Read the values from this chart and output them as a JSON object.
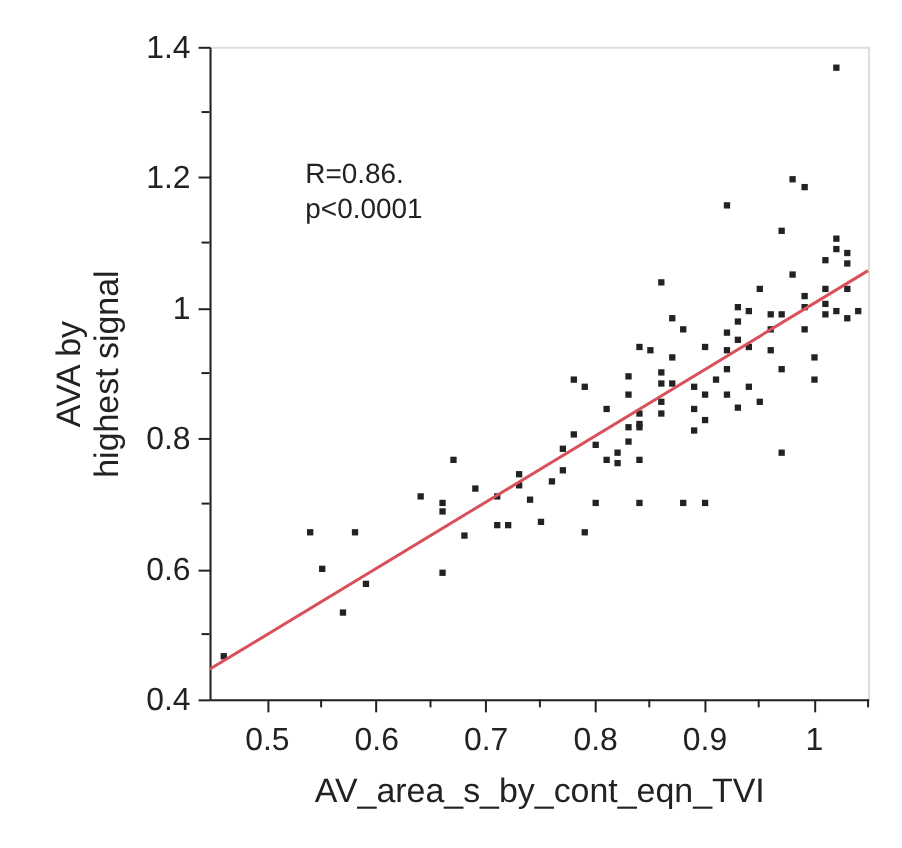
{
  "chart_data": {
    "type": "scatter",
    "xlabel": "AV_area_s_by_cont_eqn_TVI",
    "ylabel": "AVA by\nhighest signal",
    "annotations": [
      "R=0.86.",
      "p<0.0001"
    ],
    "xlim": [
      0.448,
      1.05
    ],
    "ylim": [
      0.4,
      1.4
    ],
    "xticks": [
      0.5,
      {
        "value": 0.55,
        "label": null
      },
      0.6,
      {
        "value": 0.65,
        "label": null
      },
      0.7,
      {
        "value": 0.75,
        "label": null
      },
      0.8,
      {
        "value": 0.85,
        "label": null
      },
      0.9,
      {
        "value": 0.95,
        "label": null
      },
      1,
      {
        "value": 1.05,
        "label": null
      }
    ],
    "yticks": [
      0.4,
      {
        "value": 0.5,
        "label": null
      },
      0.6,
      {
        "value": 0.7,
        "label": null
      },
      0.8,
      {
        "value": 0.9,
        "label": null
      },
      1,
      {
        "value": 1.1,
        "label": null
      },
      1.2,
      {
        "value": 1.3,
        "label": null
      },
      1.4
    ],
    "grid": false,
    "marker": "square",
    "series": [
      {
        "color": "#222222",
        "x": [
          0.461,
          0.54,
          0.551,
          0.57,
          0.581,
          0.591,
          0.641,
          0.661,
          0.661,
          0.661,
          0.671,
          0.681,
          0.691,
          0.711,
          0.711,
          0.721,
          0.731,
          0.731,
          0.741,
          0.751,
          0.761,
          0.771,
          0.771,
          0.781,
          0.781,
          0.791,
          0.791,
          0.801,
          0.801,
          0.811,
          0.811,
          0.821,
          0.821,
          0.831,
          0.831,
          0.831,
          0.831,
          0.841,
          0.841,
          0.841,
          0.841,
          0.841,
          0.841,
          0.851,
          0.861,
          0.861,
          0.861,
          0.861,
          0.861,
          0.871,
          0.871,
          0.871,
          0.881,
          0.881,
          0.891,
          0.891,
          0.891,
          0.901,
          0.901,
          0.901,
          0.901,
          0.911,
          0.921,
          0.921,
          0.921,
          0.921,
          0.921,
          0.931,
          0.931,
          0.931,
          0.931,
          0.941,
          0.941,
          0.941,
          0.951,
          0.951,
          0.961,
          0.961,
          0.961,
          0.971,
          0.971,
          0.971,
          0.971,
          0.981,
          0.981,
          0.992,
          0.992,
          0.992,
          0.992,
          1.001,
          1.001,
          1.011,
          1.011,
          1.011,
          1.011,
          1.021,
          1.021,
          1.021,
          1.021,
          1.031,
          1.031,
          1.031,
          1.031,
          1.041
        ],
        "values": [
          0.466,
          0.656,
          0.6,
          0.533,
          0.656,
          0.577,
          0.711,
          0.701,
          0.688,
          0.594,
          0.767,
          0.651,
          0.723,
          0.711,
          0.667,
          0.667,
          0.745,
          0.728,
          0.706,
          0.672,
          0.734,
          0.784,
          0.751,
          0.89,
          0.806,
          0.879,
          0.656,
          0.79,
          0.701,
          0.845,
          0.767,
          0.778,
          0.762,
          0.895,
          0.867,
          0.817,
          0.795,
          0.94,
          0.838,
          0.822,
          0.817,
          0.767,
          0.701,
          0.935,
          1.039,
          0.901,
          0.884,
          0.856,
          0.838,
          0.984,
          0.924,
          0.884,
          0.967,
          0.701,
          0.879,
          0.845,
          0.812,
          0.94,
          0.867,
          0.828,
          0.701,
          0.89,
          1.157,
          0.962,
          0.935,
          0.906,
          0.867,
          1.001,
          0.979,
          0.951,
          0.847,
          0.995,
          0.94,
          0.879,
          1.029,
          0.856,
          0.99,
          0.967,
          0.935,
          1.118,
          0.99,
          0.906,
          0.778,
          1.197,
          1.051,
          1.185,
          1.018,
          1.001,
          0.967,
          0.924,
          0.89,
          1.073,
          1.029,
          1.006,
          0.99,
          1.368,
          1.106,
          1.09,
          0.995,
          1.084,
          1.068,
          1.029,
          0.984,
          0.995
        ]
      },
      {
        "type": "line",
        "color": "#d9505a",
        "line_style": "solid",
        "marker": "none",
        "x": [
          0.448,
          1.05
        ],
        "values": [
          0.446,
          1.057
        ]
      }
    ]
  }
}
